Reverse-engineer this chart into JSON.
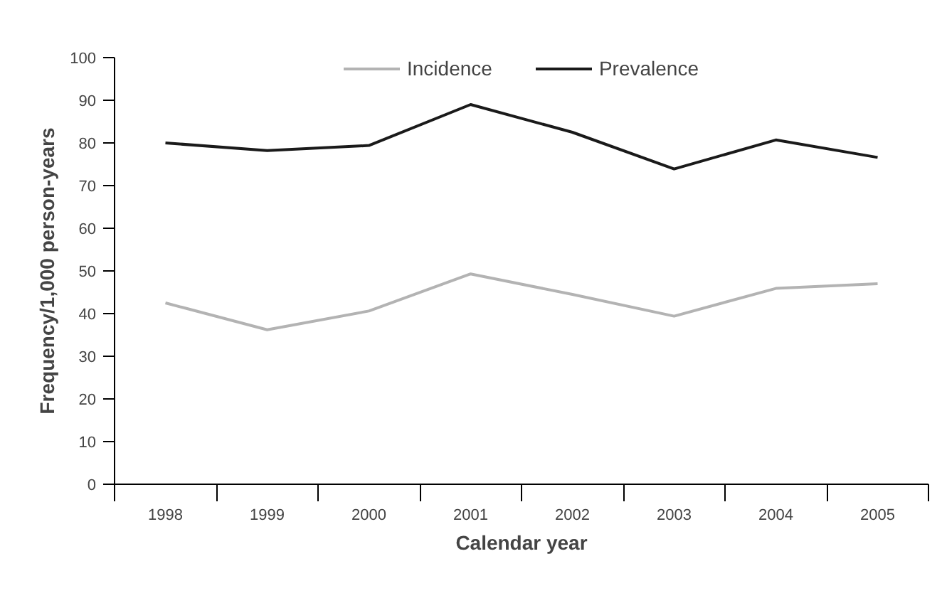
{
  "chart_data": {
    "type": "line",
    "xlabel": "Calendar year",
    "ylabel": "Frequency/1,000 person-years",
    "categories": [
      "1998",
      "1999",
      "2000",
      "2001",
      "2002",
      "2003",
      "2004",
      "2005"
    ],
    "series": [
      {
        "name": "Incidence",
        "color": "#b3b3b3",
        "values": [
          42.5,
          36.2,
          40.6,
          49.3,
          44.5,
          39.4,
          45.9,
          47.0
        ]
      },
      {
        "name": "Prevalence",
        "color": "#1a1a1a",
        "values": [
          80.0,
          78.2,
          79.4,
          89.0,
          82.5,
          73.9,
          80.7,
          76.6
        ]
      }
    ],
    "ylim": [
      0,
      100
    ],
    "yticks": [
      0,
      10,
      20,
      30,
      40,
      50,
      60,
      70,
      80,
      90,
      100
    ],
    "grid": false,
    "legend": "top",
    "marker": "none",
    "line_style": "solid"
  }
}
